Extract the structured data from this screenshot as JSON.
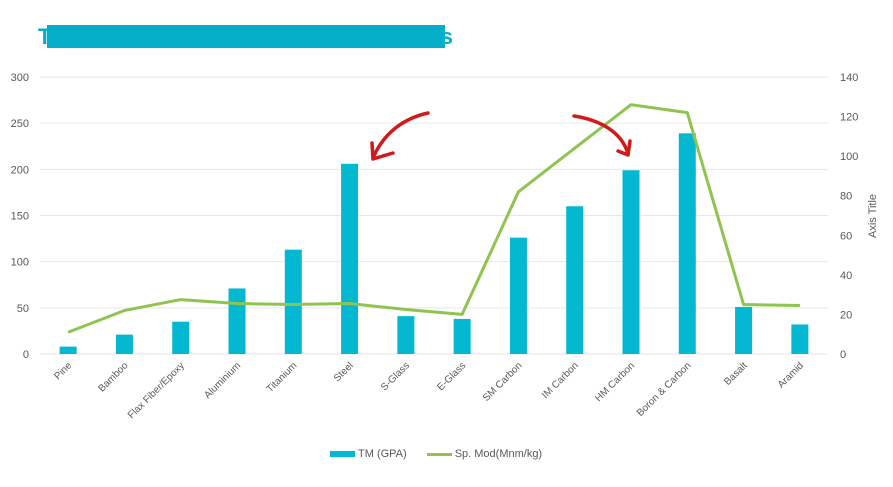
{
  "title": {
    "visible_first_char": "T",
    "visible_last_char": "s",
    "mask_color": "#04adc8"
  },
  "colors": {
    "bar": "#04b8d2",
    "line": "#8ec44f",
    "grid": "#e6e6e6",
    "annotation_arrow": "#d11a1a",
    "tick_text": "#595959"
  },
  "legend": {
    "bar_label": "TM (GPA)",
    "line_label": "Sp. Mod(Mnm/kg)"
  },
  "chart_data": {
    "type": "bar+line",
    "title": "",
    "xlabel": "",
    "ylabel": "",
    "y2label": "Axis Title",
    "ylim": [
      0,
      300
    ],
    "y2lim": [
      0,
      140
    ],
    "yticks": [
      0,
      50,
      100,
      150,
      200,
      250,
      300
    ],
    "y2ticks": [
      0,
      20,
      40,
      60,
      80,
      100,
      120,
      140
    ],
    "grid": true,
    "legend_position": "bottom",
    "categories": [
      "Pine",
      "Bamboo",
      "Flax Fiber/Epoxy",
      "Aluminium",
      "Titanium",
      "Steel",
      "S-Glass",
      "E-Glass",
      "SM Carbon",
      "IM Carbon",
      "HM Carbon",
      "Boron & Carbon",
      "Basalt",
      "Aramid"
    ],
    "series": [
      {
        "name": "TM (GPA)",
        "type": "bar",
        "axis": "left",
        "values": [
          8,
          21,
          35,
          71,
          113,
          206,
          41,
          38,
          126,
          160,
          199,
          239,
          51,
          32
        ]
      },
      {
        "name": "Sp. Mod(Mnm/kg)",
        "type": "line",
        "axis": "right",
        "values": [
          11,
          22,
          27.5,
          25.5,
          25,
          25.5,
          22.5,
          20,
          82,
          104,
          126,
          122,
          25,
          24.5
        ]
      }
    ],
    "annotations": [
      {
        "type": "arrow",
        "color": "#d11a1a",
        "points_to": "Steel"
      },
      {
        "type": "arrow",
        "color": "#d11a1a",
        "points_to": "HM Carbon"
      }
    ]
  }
}
